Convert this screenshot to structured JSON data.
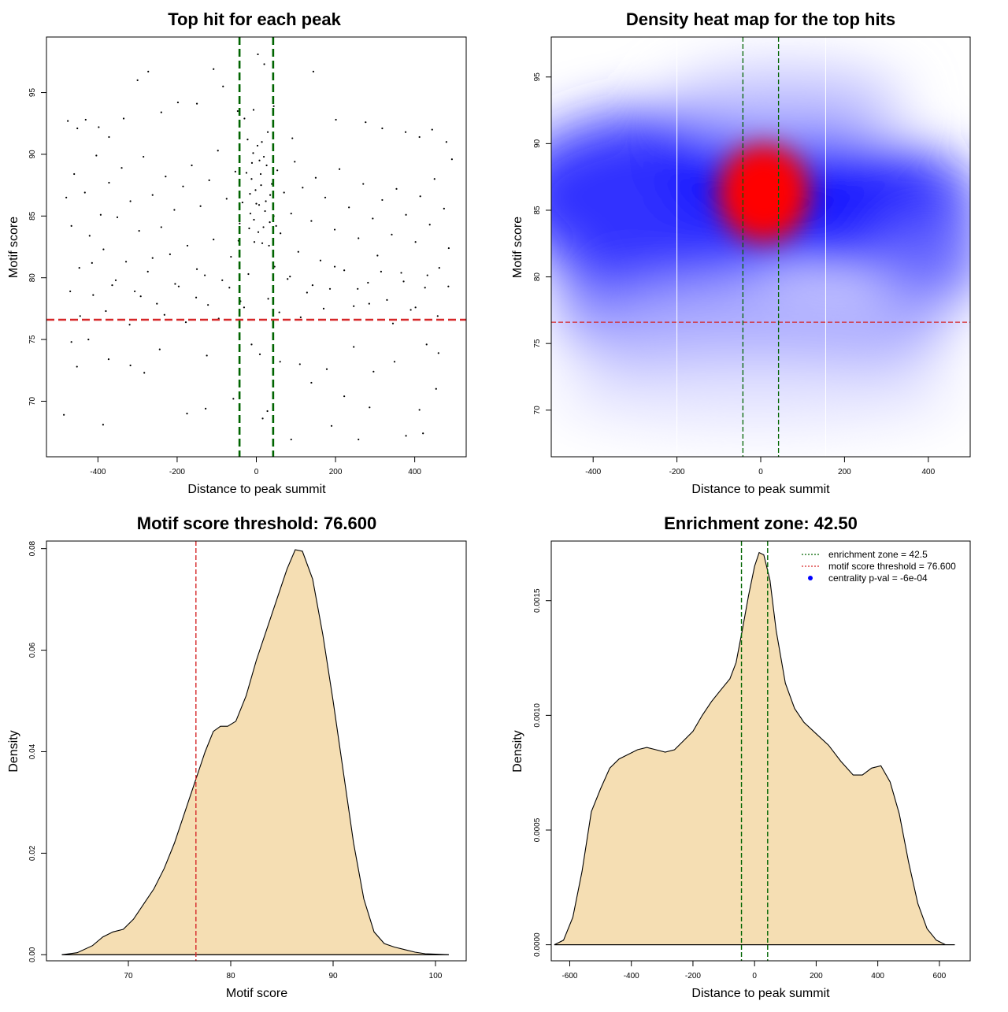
{
  "chart_data": [
    {
      "id": "scatter",
      "type": "scatter",
      "title": "Top hit for each peak",
      "xlabel": "Distance to peak summit",
      "ylabel": "Motif score",
      "xlim": [
        -530,
        530
      ],
      "ylim": [
        65.5,
        99.5
      ],
      "xticks": [
        -400,
        -200,
        0,
        200,
        400
      ],
      "yticks": [
        70,
        75,
        80,
        85,
        90,
        95
      ],
      "threshold_y": 76.6,
      "enrichment_x": [
        -42.5,
        42.5
      ],
      "threshold_color": "#d62728",
      "zone_color": "#006400",
      "points": [
        [
          -476,
          92.7
        ],
        [
          -452,
          92.1
        ],
        [
          -431,
          92.8
        ],
        [
          -398,
          92.2
        ],
        [
          -372,
          91.4
        ],
        [
          -335,
          92.9
        ],
        [
          -300,
          96.0
        ],
        [
          -273,
          96.7
        ],
        [
          -240,
          93.4
        ],
        [
          -198,
          94.2
        ],
        [
          -150,
          94.1
        ],
        [
          -108,
          96.9
        ],
        [
          -84,
          95.5
        ],
        [
          -47,
          93.5
        ],
        [
          -30,
          92.9
        ],
        [
          -7,
          93.6
        ],
        [
          4,
          98.1
        ],
        [
          20,
          97.3
        ],
        [
          44,
          93.9
        ],
        [
          91,
          91.3
        ],
        [
          144,
          96.7
        ],
        [
          201,
          92.8
        ],
        [
          276,
          92.6
        ],
        [
          318,
          92.1
        ],
        [
          377,
          91.8
        ],
        [
          412,
          91.4
        ],
        [
          444,
          92.0
        ],
        [
          480,
          91.0
        ],
        [
          -486,
          68.9
        ],
        [
          -453,
          72.8
        ],
        [
          -387,
          68.1
        ],
        [
          -318,
          72.9
        ],
        [
          -283,
          72.3
        ],
        [
          -175,
          69.0
        ],
        [
          -128,
          69.4
        ],
        [
          -58,
          70.2
        ],
        [
          16,
          68.6
        ],
        [
          28,
          69.2
        ],
        [
          88,
          66.9
        ],
        [
          139,
          71.5
        ],
        [
          190,
          68.0
        ],
        [
          222,
          70.4
        ],
        [
          258,
          66.9
        ],
        [
          286,
          69.5
        ],
        [
          296,
          72.4
        ],
        [
          378,
          67.2
        ],
        [
          412,
          69.3
        ],
        [
          421,
          67.4
        ],
        [
          454,
          71.0
        ],
        [
          -467,
          74.8
        ],
        [
          -424,
          75.0
        ],
        [
          -373,
          73.4
        ],
        [
          -244,
          74.2
        ],
        [
          -125,
          73.7
        ],
        [
          -12,
          74.6
        ],
        [
          9,
          73.8
        ],
        [
          60,
          73.2
        ],
        [
          110,
          73.0
        ],
        [
          178,
          72.6
        ],
        [
          246,
          74.4
        ],
        [
          349,
          73.2
        ],
        [
          430,
          74.6
        ],
        [
          460,
          73.9
        ],
        [
          -480,
          86.5
        ],
        [
          -467,
          84.2
        ],
        [
          -460,
          88.4
        ],
        [
          -447,
          80.8
        ],
        [
          -433,
          86.9
        ],
        [
          -421,
          83.4
        ],
        [
          -412,
          78.6
        ],
        [
          -404,
          89.9
        ],
        [
          -393,
          85.1
        ],
        [
          -386,
          82.3
        ],
        [
          -372,
          87.7
        ],
        [
          -364,
          79.4
        ],
        [
          -351,
          84.9
        ],
        [
          -340,
          88.9
        ],
        [
          -329,
          81.3
        ],
        [
          -318,
          86.2
        ],
        [
          -307,
          78.9
        ],
        [
          -296,
          83.8
        ],
        [
          -285,
          89.8
        ],
        [
          -274,
          80.5
        ],
        [
          -262,
          86.7
        ],
        [
          -251,
          77.9
        ],
        [
          -240,
          84.1
        ],
        [
          -229,
          88.2
        ],
        [
          -218,
          81.9
        ],
        [
          -207,
          85.5
        ],
        [
          -196,
          79.3
        ],
        [
          -185,
          87.4
        ],
        [
          -174,
          82.6
        ],
        [
          -163,
          89.1
        ],
        [
          -152,
          78.4
        ],
        [
          -141,
          85.8
        ],
        [
          -130,
          80.2
        ],
        [
          -119,
          87.9
        ],
        [
          -108,
          83.1
        ],
        [
          -97,
          90.3
        ],
        [
          -86,
          79.8
        ],
        [
          -75,
          86.4
        ],
        [
          -64,
          81.7
        ],
        [
          -53,
          88.6
        ],
        [
          -42,
          84.4
        ],
        [
          -31,
          77.6
        ],
        [
          -22,
          91.2
        ],
        [
          -16,
          86.8
        ],
        [
          -11,
          89.3
        ],
        [
          -6,
          84.7
        ],
        [
          -2,
          87.1
        ],
        [
          3,
          90.7
        ],
        [
          7,
          85.9
        ],
        [
          11,
          88.4
        ],
        [
          15,
          82.8
        ],
        [
          19,
          89.8
        ],
        [
          24,
          86.2
        ],
        [
          29,
          91.8
        ],
        [
          34,
          84.5
        ],
        [
          39,
          87.6
        ],
        [
          46,
          80.9
        ],
        [
          53,
          88.7
        ],
        [
          61,
          83.6
        ],
        [
          70,
          86.9
        ],
        [
          79,
          79.9
        ],
        [
          88,
          85.2
        ],
        [
          97,
          89.4
        ],
        [
          106,
          82.1
        ],
        [
          117,
          87.3
        ],
        [
          128,
          78.8
        ],
        [
          139,
          84.6
        ],
        [
          150,
          88.1
        ],
        [
          162,
          81.4
        ],
        [
          174,
          86.5
        ],
        [
          186,
          79.1
        ],
        [
          198,
          83.9
        ],
        [
          210,
          88.8
        ],
        [
          222,
          80.6
        ],
        [
          234,
          85.7
        ],
        [
          246,
          77.7
        ],
        [
          258,
          83.2
        ],
        [
          270,
          87.6
        ],
        [
          282,
          79.6
        ],
        [
          294,
          84.8
        ],
        [
          306,
          81.8
        ],
        [
          318,
          86.3
        ],
        [
          330,
          78.2
        ],
        [
          342,
          83.5
        ],
        [
          354,
          87.2
        ],
        [
          366,
          80.4
        ],
        [
          378,
          85.1
        ],
        [
          390,
          77.4
        ],
        [
          402,
          82.9
        ],
        [
          414,
          86.6
        ],
        [
          426,
          79.2
        ],
        [
          438,
          84.3
        ],
        [
          450,
          88.0
        ],
        [
          462,
          80.8
        ],
        [
          474,
          85.6
        ],
        [
          486,
          82.4
        ],
        [
          494,
          89.6
        ],
        [
          -470,
          78.9
        ],
        [
          -445,
          76.9
        ],
        [
          -415,
          81.2
        ],
        [
          -380,
          77.3
        ],
        [
          -355,
          79.8
        ],
        [
          -320,
          76.2
        ],
        [
          -292,
          78.5
        ],
        [
          -262,
          81.6
        ],
        [
          -232,
          77.0
        ],
        [
          -205,
          79.5
        ],
        [
          -178,
          76.4
        ],
        [
          -150,
          80.7
        ],
        [
          -122,
          77.8
        ],
        [
          -95,
          76.7
        ],
        [
          -68,
          79.2
        ],
        [
          -40,
          78.1
        ],
        [
          -20,
          80.3
        ],
        [
          30,
          78.3
        ],
        [
          58,
          77.2
        ],
        [
          85,
          80.1
        ],
        [
          112,
          76.8
        ],
        [
          142,
          79.4
        ],
        [
          170,
          77.5
        ],
        [
          198,
          80.9
        ],
        [
          228,
          76.6
        ],
        [
          256,
          79.1
        ],
        [
          285,
          77.9
        ],
        [
          315,
          80.5
        ],
        [
          345,
          76.3
        ],
        [
          372,
          79.7
        ],
        [
          402,
          77.6
        ],
        [
          432,
          80.2
        ],
        [
          458,
          76.9
        ],
        [
          485,
          79.3
        ],
        [
          -12,
          88.0
        ],
        [
          0,
          86.0
        ],
        [
          12,
          87.5
        ],
        [
          22,
          85.4
        ],
        [
          -5,
          82.9
        ],
        [
          5,
          83.7
        ],
        [
          18,
          84.1
        ],
        [
          -15,
          85.2
        ],
        [
          26,
          89.1
        ],
        [
          -25,
          88.5
        ],
        [
          35,
          86.7
        ],
        [
          -35,
          86.1
        ],
        [
          44,
          85.0
        ],
        [
          50,
          84.2
        ],
        [
          -45,
          83.0
        ],
        [
          8,
          89.5
        ],
        [
          -8,
          90.1
        ],
        [
          14,
          91.0
        ],
        [
          -18,
          84.0
        ],
        [
          32,
          82.6
        ]
      ]
    },
    {
      "id": "heatmap",
      "type": "heatmap",
      "title": "Density heat map for the top hits",
      "xlabel": "Distance to peak summit",
      "ylabel": "Motif score",
      "xlim": [
        -500,
        500
      ],
      "ylim": [
        66.5,
        98
      ],
      "xticks": [
        -400,
        -200,
        0,
        200,
        400
      ],
      "yticks": [
        70,
        75,
        80,
        85,
        90,
        95
      ],
      "threshold_y": 76.6,
      "enrichment_x": [
        -42.5,
        42.5
      ],
      "white_lines_x": [
        -200,
        155
      ],
      "hot_spot": {
        "x": 15,
        "y": 86.7
      },
      "threshold_color": "#d62728",
      "zone_color": "#006400"
    },
    {
      "id": "score-density",
      "type": "area",
      "title": "Motif score threshold: 76.600",
      "xlabel": "Motif score",
      "ylabel": "Density",
      "xlim": [
        62,
        103
      ],
      "ylim": [
        -0.0012,
        0.0815
      ],
      "xticks": [
        70,
        80,
        90,
        100
      ],
      "yticks": [
        0.0,
        0.02,
        0.04,
        0.06,
        0.08
      ],
      "ytick_labels": [
        "0.00",
        "0.02",
        "0.04",
        "0.06",
        "0.08"
      ],
      "threshold_x": 76.6,
      "fill_color": "#f5deb3",
      "threshold_color": "#d62728",
      "x": [
        63.5,
        65,
        66.5,
        67.5,
        68.5,
        69.5,
        70.5,
        71.5,
        72.5,
        73.5,
        74.5,
        75.5,
        76.5,
        77.5,
        78.3,
        79.0,
        79.7,
        80.5,
        81.5,
        82.5,
        83.5,
        84.5,
        85.5,
        86.3,
        87.0,
        88.0,
        89.0,
        90.0,
        91.0,
        92.0,
        93.0,
        94.0,
        95.0,
        96.0,
        97.0,
        98.0,
        99.0,
        100.0,
        101.3
      ],
      "y": [
        0.0,
        0.0004,
        0.0018,
        0.0035,
        0.0045,
        0.005,
        0.007,
        0.01,
        0.013,
        0.017,
        0.022,
        0.028,
        0.034,
        0.04,
        0.044,
        0.045,
        0.045,
        0.046,
        0.051,
        0.058,
        0.064,
        0.07,
        0.076,
        0.0798,
        0.0795,
        0.074,
        0.063,
        0.05,
        0.036,
        0.022,
        0.011,
        0.0045,
        0.0022,
        0.0015,
        0.001,
        0.0005,
        0.0002,
        0.0001,
        0.0
      ]
    },
    {
      "id": "distance-density",
      "type": "area",
      "title": "Enrichment zone: 42.50",
      "xlabel": "Distance to peak summit",
      "ylabel": "Density",
      "xlim": [
        -660,
        700
      ],
      "ylim": [
        -7e-05,
        0.00176
      ],
      "xticks": [
        -600,
        -400,
        -200,
        0,
        200,
        400,
        600
      ],
      "yticks": [
        0.0,
        0.0005,
        0.001,
        0.0015
      ],
      "ytick_labels": [
        "0.0000",
        "0.0005",
        "0.0010",
        "0.0015"
      ],
      "enrichment_x": [
        -42.5,
        42.5
      ],
      "fill_color": "#f5deb3",
      "zone_color": "#006400",
      "x": [
        -650,
        -620,
        -590,
        -560,
        -530,
        -500,
        -470,
        -440,
        -410,
        -380,
        -350,
        -320,
        -290,
        -260,
        -230,
        -200,
        -170,
        -140,
        -110,
        -80,
        -60,
        -40,
        -20,
        0,
        15,
        30,
        50,
        70,
        100,
        130,
        160,
        200,
        240,
        280,
        320,
        350,
        380,
        410,
        440,
        470,
        500,
        530,
        560,
        590,
        620,
        650
      ],
      "y": [
        0.0,
        2e-05,
        0.00012,
        0.00032,
        0.00058,
        0.00068,
        0.00077,
        0.00081,
        0.00083,
        0.00085,
        0.00086,
        0.00085,
        0.00084,
        0.00085,
        0.00089,
        0.00093,
        0.001,
        0.00106,
        0.00111,
        0.00116,
        0.00123,
        0.00137,
        0.00152,
        0.00165,
        0.00171,
        0.0017,
        0.00159,
        0.00137,
        0.00114,
        0.00103,
        0.00097,
        0.00092,
        0.00087,
        0.0008,
        0.00074,
        0.00074,
        0.00077,
        0.00078,
        0.00071,
        0.00057,
        0.00036,
        0.00018,
        7e-05,
        2e-05,
        0.0,
        0.0
      ],
      "legend": {
        "placement": "top-right",
        "entries": [
          {
            "label": "enrichment zone = 42.5",
            "color": "#006400",
            "style": "dotted-line"
          },
          {
            "label": "motif score threshold = 76.600",
            "color": "#d62728",
            "style": "dotted-line"
          },
          {
            "label": "centrality p-val = -6e-04",
            "color": "#0000ff",
            "style": "point"
          }
        ]
      }
    }
  ]
}
